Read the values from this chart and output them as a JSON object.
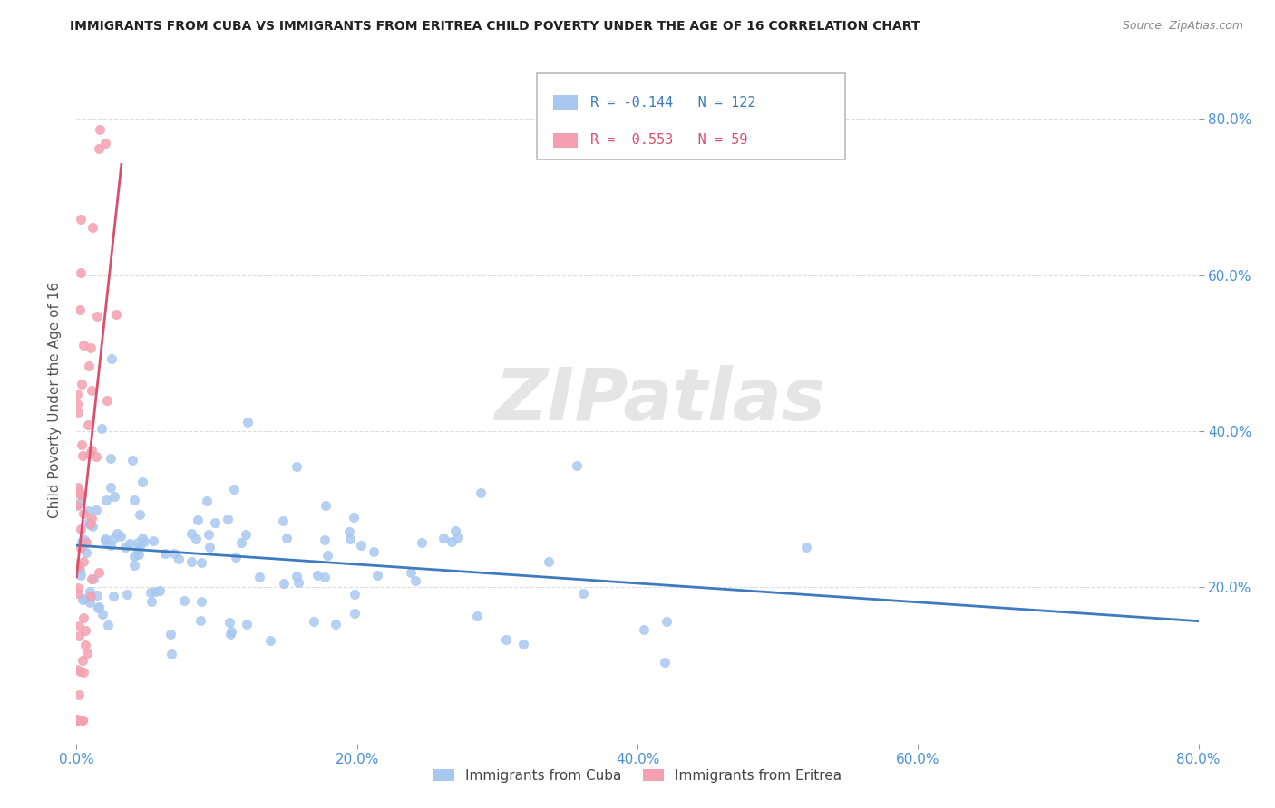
{
  "title": "IMMIGRANTS FROM CUBA VS IMMIGRANTS FROM ERITREA CHILD POVERTY UNDER THE AGE OF 16 CORRELATION CHART",
  "source": "Source: ZipAtlas.com",
  "ylabel": "Child Poverty Under the Age of 16",
  "xlim": [
    0.0,
    0.8
  ],
  "ylim": [
    0.0,
    0.88
  ],
  "xtick_labels": [
    "0.0%",
    "20.0%",
    "40.0%",
    "60.0%",
    "80.0%"
  ],
  "xtick_vals": [
    0.0,
    0.2,
    0.4,
    0.6,
    0.8
  ],
  "ytick_labels": [
    "20.0%",
    "40.0%",
    "60.0%",
    "80.0%"
  ],
  "ytick_vals": [
    0.2,
    0.4,
    0.6,
    0.8
  ],
  "cuba_color": "#a8c8f0",
  "eritrea_color": "#f5a0b0",
  "cuba_line_color": "#3d7abf",
  "eritrea_line_color": "#d94f6e",
  "legend_cuba_label": "Immigrants from Cuba",
  "legend_eritrea_label": "Immigrants from Eritrea",
  "cuba_R": -0.144,
  "cuba_N": 122,
  "eritrea_R": 0.553,
  "eritrea_N": 59,
  "watermark": "ZIPatlas",
  "grid_color": "#dddddd",
  "background_color": "#ffffff"
}
